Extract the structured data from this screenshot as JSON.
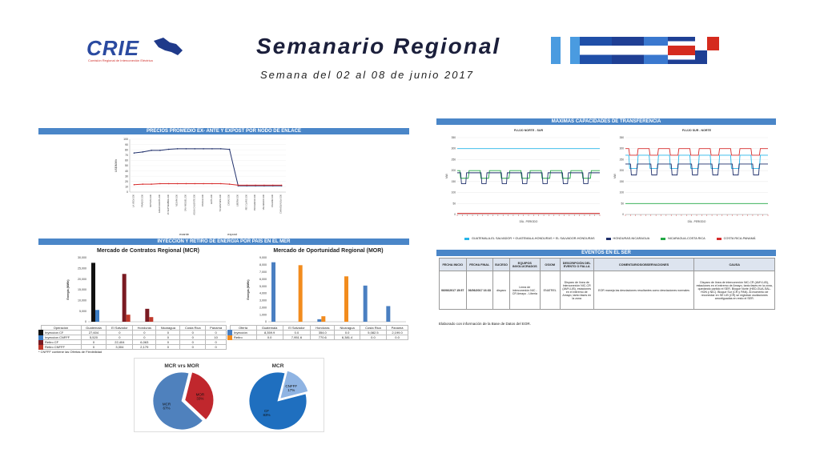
{
  "header": {
    "logo_text": "CRIE",
    "logo_subtext": "Comisión Regional de Interconexión Eléctrica",
    "title": "Semanario Regional",
    "subtitle": "Semana del 02 al 08 de junio 2017"
  },
  "colors": {
    "section_bar": "#4a86c8",
    "navy": "#1f2f6b",
    "red": "#d62b2b"
  },
  "sections": {
    "prices": "PRECIOS PROMEDIO EX- ANTE Y EXPOST POR NODO DE ENLACE",
    "injection": "INYECCIÓN Y RETIRO DE ENERGÍA POR PAÍS EN EL MER",
    "transfer": "MÁXIMAS CAPACIDADES DE TRANSFERENCIA",
    "events": "EVENTOS EN EL SER"
  },
  "chart_data": [
    {
      "type": "line",
      "title": "",
      "ylabel": "US$/MWh",
      "ylim": [
        0,
        100
      ],
      "yticks": [
        0,
        10,
        20,
        30,
        40,
        50,
        60,
        70,
        80,
        90,
        100
      ],
      "categories": [
        "LA VEGA 230",
        "PRADOS 230",
        "MOYUTA 230",
        "AHUACHAPÁN 230",
        "15 SEPTIEMBRE 230",
        "NEJAPA 230",
        "SAN MIGUEL 230",
        "AGUA CALIENTE 230",
        "PAVANA 230",
        "LEÓN 230",
        "TICUANTEPE 230",
        "CAÑAS 230",
        "LIBERIA 230",
        "RÍO CLARO 230",
        "PROGRESO 230",
        "VELADERO 230",
        "PANAMÁ 230",
        "CHANGUINOLA 230"
      ],
      "series": [
        {
          "name": "exante",
          "color": "#1f2f6b",
          "values": [
            74,
            76,
            79,
            79,
            81,
            82,
            82,
            82,
            82,
            82,
            82,
            81,
            12,
            12,
            12,
            12,
            12,
            12
          ]
        },
        {
          "name": "expost",
          "color": "#d62b2b",
          "values": [
            14,
            15,
            15,
            16,
            16,
            16,
            16,
            16,
            16,
            16,
            16,
            15,
            13,
            13,
            13,
            13,
            13,
            13
          ]
        }
      ]
    },
    {
      "type": "bar",
      "title": "Mercado de Contratos Regional (MCR)",
      "ylabel": "Energía (MWh)",
      "ylim": [
        0,
        30000
      ],
      "yticks": [
        0,
        5000,
        10000,
        15000,
        20000,
        25000,
        30000
      ],
      "ytick_labels": [
        "0",
        "5,000",
        "10,000",
        "15,000",
        "20,000",
        "25,000",
        "30,000"
      ],
      "categories": [
        "Guatemala",
        "El Salvador",
        "Honduras",
        "Nicaragua",
        "Costa Rica",
        "Panamá"
      ],
      "series": [
        {
          "name": "Inyeccion CF",
          "color": "#111111",
          "values": [
            27604,
            0,
            0,
            0,
            0,
            0
          ]
        },
        {
          "name": "Inyeccion CNFFF",
          "color": "#3c7dc4",
          "values": [
            5520,
            0,
            0,
            0,
            0,
            10
          ]
        },
        {
          "name": "Retiro CF",
          "color": "#7a1a22",
          "values": [
            0,
            22404,
            6063,
            0,
            0,
            0
          ]
        },
        {
          "name": "Retiro CNFFF",
          "color": "#c0392b",
          "values": [
            0,
            3304,
            2179,
            0,
            0,
            0
          ]
        }
      ]
    },
    {
      "type": "bar",
      "title": "Mercado de Oportunidad Regional (MOR)",
      "ylabel": "Energía (MWh)",
      "ylim": [
        0,
        9000
      ],
      "yticks": [
        0,
        1000,
        2000,
        3000,
        4000,
        5000,
        6000,
        7000,
        8000,
        9000
      ],
      "ytick_labels": [
        "0",
        "1,000",
        "2,000",
        "3,000",
        "4,000",
        "5,000",
        "6,000",
        "7,000",
        "8,000",
        "9,000"
      ],
      "categories": [
        "Guatemala",
        "El Salvador",
        "Honduras",
        "Nicaragua",
        "Costa Rica",
        "Panamá"
      ],
      "series": [
        {
          "name": "Inyección",
          "color": "#4a7fc1",
          "values": [
            8359.9,
            0.0,
            354.0,
            0.0,
            5082.5,
            2199.0
          ]
        },
        {
          "name": "Retiro",
          "color": "#f28c1e",
          "values": [
            0.0,
            7951.6,
            770.6,
            6381.4,
            0.0,
            0.0
          ]
        }
      ]
    },
    {
      "type": "pie",
      "title": "MCR vrs MOR",
      "slices": [
        {
          "label": "MOR",
          "percent": 33,
          "color": "#c0272d"
        },
        {
          "label": "MCR",
          "percent": 67,
          "color": "#4f81bd"
        }
      ]
    },
    {
      "type": "pie",
      "title": "MCR",
      "slices": [
        {
          "label": "CNFFF",
          "percent": 17,
          "color": "#8fb4e3"
        },
        {
          "label": "CF",
          "percent": 83,
          "color": "#1f6fbf"
        }
      ]
    },
    {
      "type": "line",
      "title": "FLUJO NORTE - SUR",
      "xlabel": "DÍA - PERIODO",
      "ylabel": "MW",
      "ylim": [
        0,
        350
      ],
      "yticks": [
        0,
        50,
        100,
        150,
        200,
        250,
        300,
        350
      ],
      "series": [
        {
          "name": "GUATEMALA-EL SALVADOR",
          "color": "#27b5e8",
          "pattern": "constant 300"
        },
        {
          "name": "EL SALVADOR-HONDURAS",
          "color": "#1f2f6b",
          "pattern": "square 140-200"
        },
        {
          "name": "HONDURAS-NICARAGUA",
          "color": "#22a845",
          "pattern": "square 165-200"
        },
        {
          "name": "NICARAGUA-COSTA RICA",
          "color": "#d62b2b",
          "pattern": "near 0"
        }
      ]
    },
    {
      "type": "line",
      "title": "FLUJO SUR - NORTE",
      "xlabel": "DÍA - PERIODO",
      "ylabel": "MW",
      "ylim": [
        0,
        350
      ],
      "yticks": [
        0,
        50,
        100,
        150,
        200,
        250,
        300,
        350
      ],
      "series": [
        {
          "name": "COSTA RICA-PANAMÁ",
          "color": "#d62b2b",
          "pattern": "square 270-300"
        },
        {
          "name": "GUATEMALA-EL SALVADOR",
          "color": "#27b5e8",
          "pattern": "square 210-270"
        },
        {
          "name": "EL SALVADOR-HONDURAS",
          "color": "#1f2f6b",
          "pattern": "square 180-230"
        },
        {
          "name": "NICARAGUA-COSTA RICA",
          "color": "#22a845",
          "pattern": "near 50"
        }
      ]
    }
  ],
  "prices_legend": [
    "exante",
    "expost"
  ],
  "mcr_table": {
    "headers": [
      "Operación",
      "Guatemala",
      "El Salvador",
      "Honduras",
      "Nicaragua",
      "Costa Rica",
      "Panamá"
    ],
    "rows": [
      {
        "label": "Inyeccion CF",
        "color": "#111111",
        "cells": [
          "27,604",
          "0",
          "0",
          "0",
          "0",
          "0"
        ]
      },
      {
        "label": "Inyeccion CNFFF",
        "color": "#3c7dc4",
        "cells": [
          "5,520",
          "0",
          "0",
          "0",
          "0",
          "10"
        ]
      },
      {
        "label": "Retiro CF",
        "color": "#7a1a22",
        "cells": [
          "0",
          "22,404",
          "6,063",
          "0",
          "0",
          "0"
        ]
      },
      {
        "label": "Retiro CNFFF",
        "color": "#c0392b",
        "cells": [
          "0",
          "3,304",
          "2,179",
          "0",
          "0",
          "0"
        ]
      }
    ],
    "note": "* CNFFF contiene las Ofertas de Flexibilidad"
  },
  "mor_table": {
    "headers": [
      "Oferta",
      "Guatemala",
      "El Salvador",
      "Honduras",
      "Nicaragua",
      "Costa Rica",
      "Panamá"
    ],
    "rows": [
      {
        "label": "Inyección",
        "color": "#4a7fc1",
        "cells": [
          "8,359.9",
          "0.0",
          "354.0",
          "0.0",
          "5,082.5",
          "2,199.0"
        ]
      },
      {
        "label": "Retiro",
        "color": "#f28c1e",
        "cells": [
          "0.0",
          "7,951.6",
          "770.6",
          "6,381.4",
          "0.0",
          "0.0"
        ]
      }
    ]
  },
  "transfer_legend": [
    {
      "label": "GUATEMALA-EL SALVADOR + GUATEMALA-HONDURAS + EL SALVADOR-HONDURAS",
      "color": "#27b5e8"
    },
    {
      "label": "HONDURAS-NICARAGUA",
      "color": "#1f2f6b"
    },
    {
      "label": "NICARAGUA-COSTA RICA",
      "color": "#22a845"
    },
    {
      "label": "COSTA RICA-PANAMÁ",
      "color": "#d62b2b"
    }
  ],
  "events_table": {
    "headers": [
      "FECHA INICIO",
      "FECHA FINAL",
      "SUCESO",
      "EQUIPOS INVOLUCRADOS",
      "OS/OM",
      "DESCRIPCIÓN DEL EVENTO O FALLA",
      "COMENTARIOS/OBSERVACIONES",
      "CAUSA"
    ],
    "row": [
      "06/06/2017 15:57",
      "06/06/2017 16:33",
      "disparo",
      "Línea de interconexión NIC - CR\nAmayo - Liberia",
      "ENATREL",
      "Disparo de línea de interconexión NIC-CR (AMY-LIB), estaciones en el extremo de Amayo, tanto fases en la zona",
      "EOR maneja las desviaciones resultantes como desviaciones normales",
      "Disparo de línea de interconexión NIC-CR (AMY-LIB), estaciones en el extremo de Amayo, tanto fases en la zona, quedando partido el SER. Bloque Norte (HED-GUA-SAL-HON y NIC). Bloque Sur (CR y PAN). Al momento de reconectar en SE LIB (CR) se registran oscilaciones amortiguadas en resto el SER."
    ]
  },
  "footnote": "Elaborado con información de la Base de Datos del EOR."
}
